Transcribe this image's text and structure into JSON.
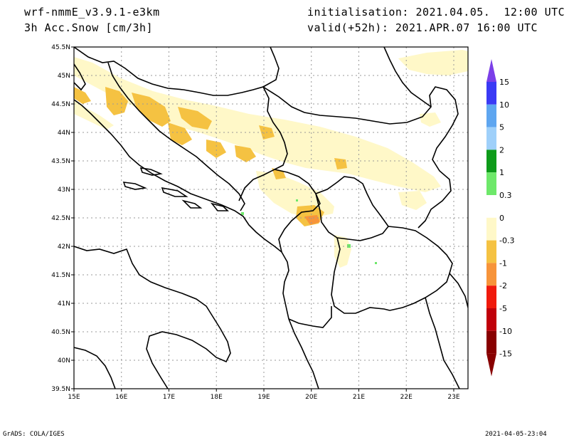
{
  "header": {
    "model": "wrf-nmmE_v3.9.1-e3km",
    "field": "3h Acc.Snow [cm/3h]",
    "init": "initialisation: 2021.04.05.  12:00 UTC",
    "valid": "valid(+52h): 2021.APR.07 16:00 UTC"
  },
  "map": {
    "lon_range": [
      15,
      23.3
    ],
    "lat_range": [
      39.5,
      45.5
    ],
    "lon_ticks": [
      "15E",
      "16E",
      "17E",
      "18E",
      "19E",
      "20E",
      "21E",
      "22E",
      "23E"
    ],
    "lat_ticks": [
      "39.5N",
      "40N",
      "40.5N",
      "41N",
      "41.5N",
      "42N",
      "42.5N",
      "43N",
      "43.5N",
      "44N",
      "44.5N",
      "45N",
      "45.5N"
    ]
  },
  "colorbar": {
    "labels": [
      "15",
      "10",
      "5",
      "2",
      "1",
      "0.3",
      "0",
      "-0.3",
      "-1",
      "-2",
      "-5",
      "-10",
      "-15"
    ],
    "colors": [
      "#7b3fe8",
      "#3a3af5",
      "#5ea6f0",
      "#9fd0fa",
      "#0e9b1a",
      "#6ee86a",
      "#ffffff",
      "#fff8c8",
      "#f5c242",
      "#f7943a",
      "#f01a0c",
      "#c0000a",
      "#880000"
    ]
  },
  "footer": {
    "left": "GrADS: COLA/IGES",
    "right": "2021-04-05-23:04"
  }
}
